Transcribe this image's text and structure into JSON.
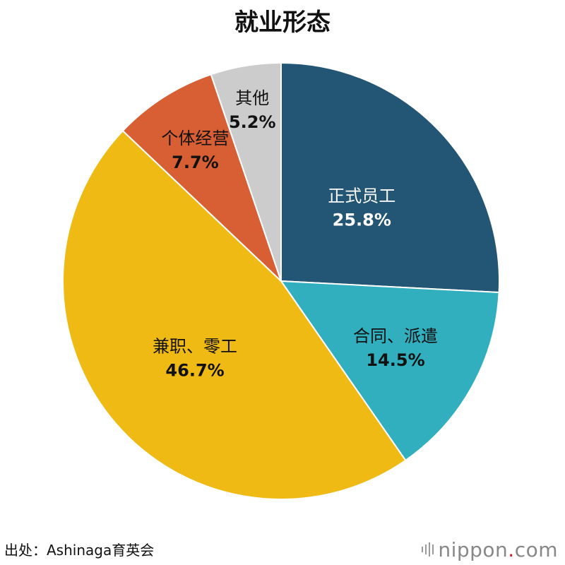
{
  "chart_data": {
    "type": "pie",
    "title": "就业形态",
    "slices": [
      {
        "label": "正式员工",
        "value": 25.8,
        "display": "25.8%",
        "color": "#235574",
        "text_color": "#ffffff"
      },
      {
        "label": "合同、派遣",
        "value": 14.5,
        "display": "14.5%",
        "color": "#31afbf",
        "text_color": "#111111"
      },
      {
        "label": "兼职、零工",
        "value": 46.7,
        "display": "46.7%",
        "color": "#f0ba14",
        "text_color": "#111111"
      },
      {
        "label": "个体经营",
        "value": 7.7,
        "display": "7.7%",
        "color": "#d85f33",
        "text_color": "#111111"
      },
      {
        "label": "其他",
        "value": 5.2,
        "display": "5.2%",
        "color": "#cccccc",
        "text_color": "#111111"
      }
    ],
    "start": "12 o'clock",
    "direction": "clockwise"
  },
  "footer": {
    "source": "出处：Ashinaga育英会",
    "brand_main": "nippon",
    "brand_dot": ".",
    "brand_tld": "com"
  }
}
